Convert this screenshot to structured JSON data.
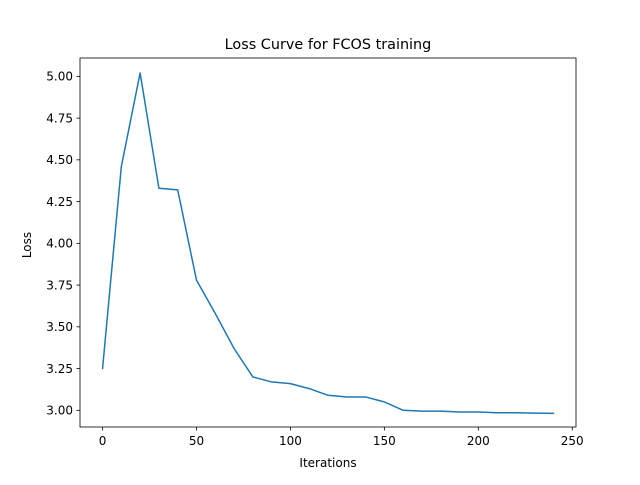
{
  "chart_data": {
    "type": "line",
    "title": "Loss Curve for FCOS training",
    "xlabel": "Iterations",
    "ylabel": "Loss",
    "xlim": [
      -12,
      252
    ],
    "ylim": [
      2.9,
      5.11
    ],
    "xticks": [
      0,
      50,
      100,
      150,
      200,
      250
    ],
    "yticks": [
      3.0,
      3.25,
      3.5,
      3.75,
      4.0,
      4.25,
      4.5,
      4.75,
      5.0
    ],
    "xtick_labels": [
      "0",
      "50",
      "100",
      "150",
      "200",
      "250"
    ],
    "ytick_labels": [
      "3.00",
      "3.25",
      "3.50",
      "3.75",
      "4.00",
      "4.25",
      "4.50",
      "4.75",
      "5.00"
    ],
    "grid": false,
    "legend": "none",
    "series": [
      {
        "color": "#1f77b4",
        "x": [
          0,
          10,
          20,
          30,
          40,
          50,
          60,
          70,
          80,
          90,
          100,
          110,
          120,
          130,
          140,
          150,
          160,
          170,
          180,
          190,
          200,
          210,
          220,
          230,
          240
        ],
        "y": [
          3.25,
          4.46,
          5.02,
          4.33,
          4.32,
          3.78,
          3.58,
          3.37,
          3.2,
          3.17,
          3.16,
          3.13,
          3.09,
          3.08,
          3.08,
          3.05,
          3.0,
          2.995,
          2.995,
          2.99,
          2.99,
          2.985,
          2.985,
          2.983,
          2.982
        ]
      }
    ]
  }
}
